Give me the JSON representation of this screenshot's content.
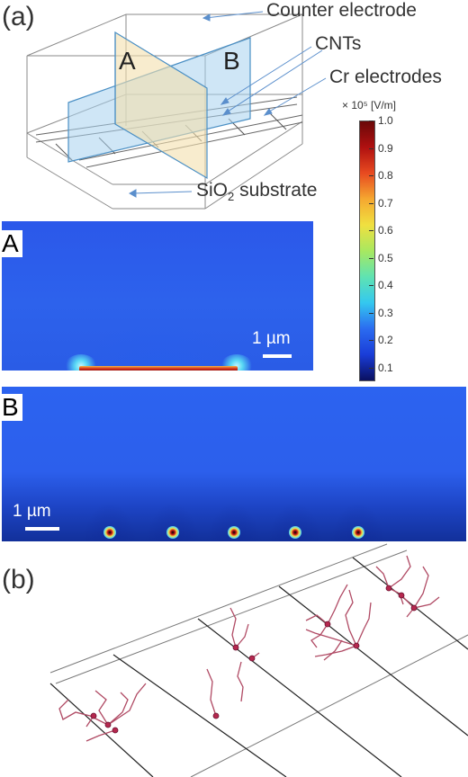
{
  "panel_a": {
    "label": "(a)",
    "callouts": {
      "counter_electrode": "Counter electrode",
      "cnts": "CNTs",
      "cr_electrodes": "Cr electrodes",
      "substrate_main": "SiO",
      "substrate_sub": "2",
      "substrate_rest": " substrate"
    },
    "planes": {
      "a": "A",
      "b": "B"
    }
  },
  "colorbar": {
    "title": "× 10⁵ [V/m]",
    "ticks": [
      "1.0",
      "0.9",
      "0.8",
      "0.7",
      "0.6",
      "0.5",
      "0.4",
      "0.3",
      "0.2",
      "0.1"
    ],
    "colors": [
      "#0a1060",
      "#1a3dd8",
      "#2b6cf0",
      "#34c8ef",
      "#5fe3b2",
      "#a8e860",
      "#f0e040",
      "#f5a830",
      "#e84a20",
      "#b01010",
      "#6a0808"
    ]
  },
  "field_map_a": {
    "label": "A",
    "scale_bar": "1 µm"
  },
  "field_map_b": {
    "label": "B",
    "scale_bar": "1 µm"
  },
  "panel_b": {
    "label": "(b)"
  }
}
